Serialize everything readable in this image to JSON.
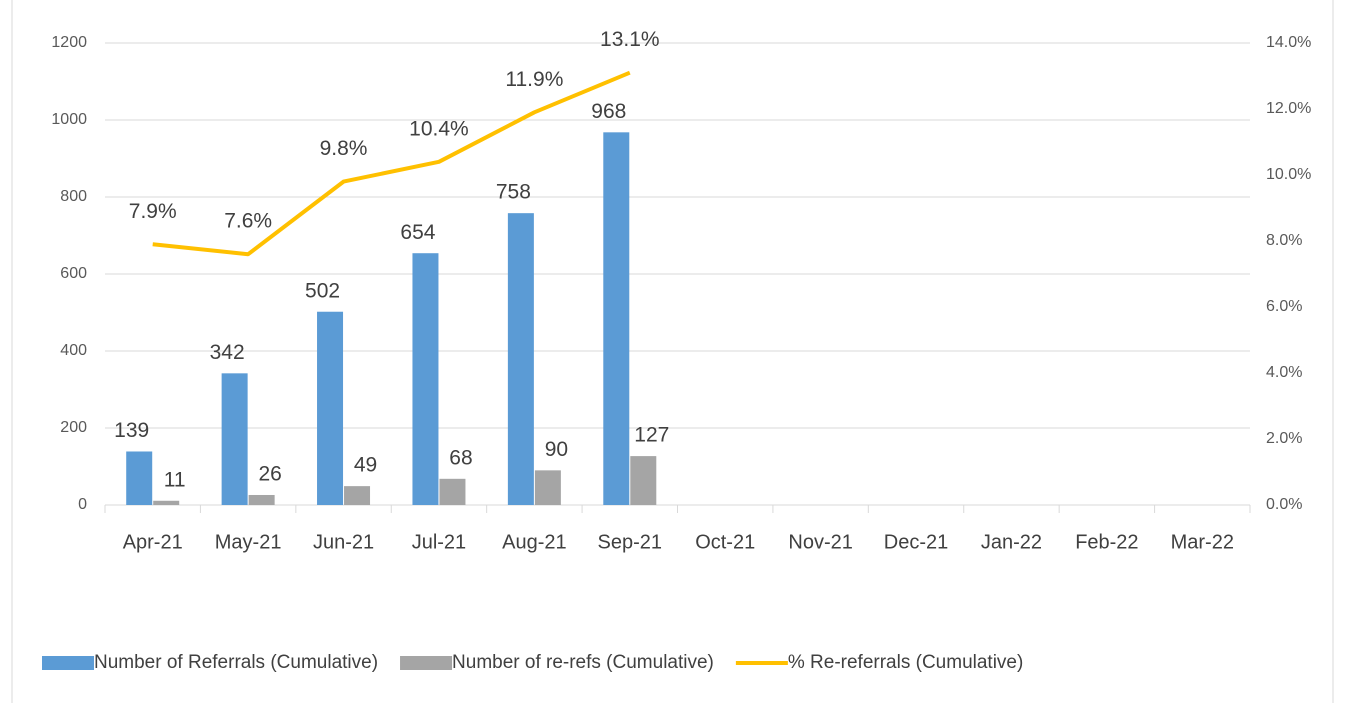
{
  "chart_data": {
    "type": "bar-line",
    "categories": [
      "Apr-21",
      "May-21",
      "Jun-21",
      "Jul-21",
      "Aug-21",
      "Sep-21",
      "Oct-21",
      "Nov-21",
      "Dec-21",
      "Jan-22",
      "Feb-22",
      "Mar-22"
    ],
    "series": [
      {
        "name": "Number of Referrals (Cumulative)",
        "type": "bar",
        "color": "#5b9bd5",
        "values": [
          139,
          342,
          502,
          654,
          758,
          968,
          null,
          null,
          null,
          null,
          null,
          null
        ]
      },
      {
        "name": "Number of re-refs (Cumulative)",
        "type": "bar",
        "color": "#a5a5a5",
        "values": [
          11,
          26,
          49,
          68,
          90,
          127,
          null,
          null,
          null,
          null,
          null,
          null
        ]
      },
      {
        "name": "% Re-referrals (Cumulative)",
        "type": "line",
        "axis": "y2",
        "color": "#ffc000",
        "values": [
          7.9,
          7.6,
          9.8,
          10.4,
          11.9,
          13.1,
          null,
          null,
          null,
          null,
          null,
          null
        ],
        "value_labels": [
          "7.9%",
          "7.6%",
          "9.8%",
          "10.4%",
          "11.9%",
          "13.1%",
          null,
          null,
          null,
          null,
          null,
          null
        ]
      }
    ],
    "ylim": [
      0,
      1200
    ],
    "yticks": [
      0,
      200,
      400,
      600,
      800,
      1000,
      1200
    ],
    "y2lim": [
      0,
      14
    ],
    "y2ticks": [
      {
        "value": 0,
        "label": "0.0%"
      },
      {
        "value": 2,
        "label": "2.0%"
      },
      {
        "value": 4,
        "label": "4.0%"
      },
      {
        "value": 6,
        "label": "6.0%"
      },
      {
        "value": 8,
        "label": "8.0%"
      },
      {
        "value": 10,
        "label": "10.0%"
      },
      {
        "value": 12,
        "label": "12.0%"
      },
      {
        "value": 14,
        "label": "14.0%"
      }
    ],
    "grid": true,
    "legend": "bottom"
  }
}
